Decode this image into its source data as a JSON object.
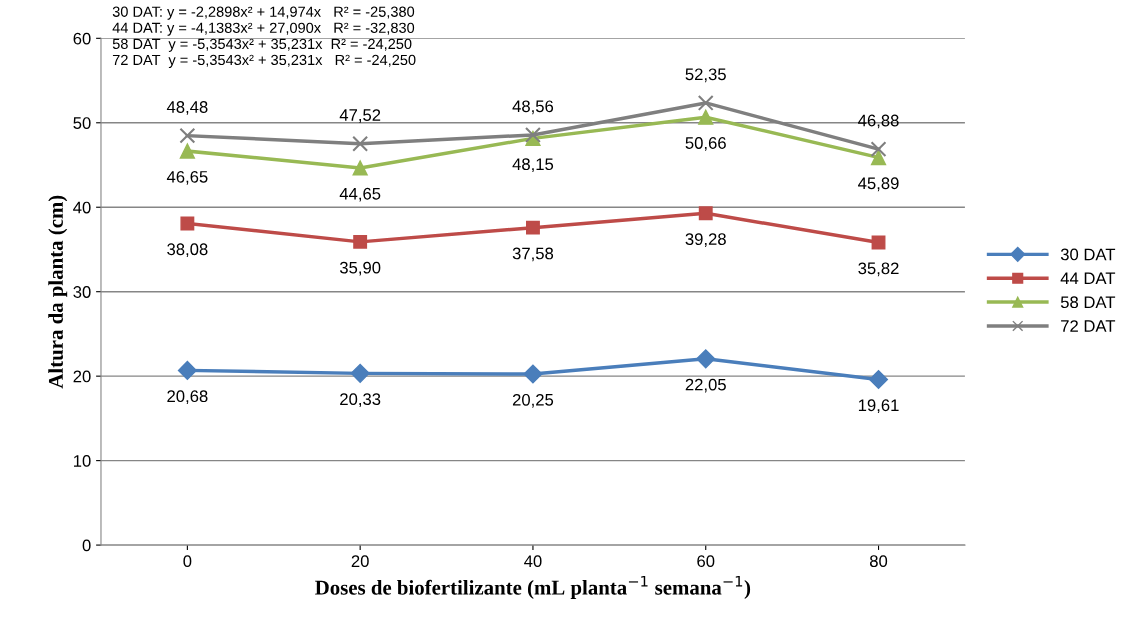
{
  "chart_data": {
    "type": "line",
    "xlabel": "Doses de biofertilizante (mL planta$^{−1}$ semana$^{−1}$)",
    "ylabel": "Altura da planta (cm)",
    "categories": [
      "0",
      "20",
      "40",
      "60",
      "80"
    ],
    "series": [
      {
        "name": "30 DAT",
        "color": "#4a7ebb",
        "marker": "diamond",
        "values": [
          20.68,
          20.33,
          20.25,
          22.05,
          19.61
        ],
        "value_labels": [
          "20,68",
          "20,33",
          "20,25",
          "22,05",
          "19,61"
        ]
      },
      {
        "name": "44 DAT",
        "color": "#be4b48",
        "marker": "square",
        "values": [
          38.08,
          35.9,
          37.58,
          39.28,
          35.82
        ],
        "value_labels": [
          "38,08",
          "35,90",
          "37,58",
          "39,28",
          "35,82"
        ]
      },
      {
        "name": "58 DAT",
        "color": "#98b954",
        "marker": "triangle",
        "values": [
          46.65,
          44.65,
          48.15,
          50.66,
          45.89
        ],
        "value_labels": [
          "46,65",
          "44,65",
          "48,15",
          "50,66",
          "45,89"
        ]
      },
      {
        "name": "72 DAT",
        "color": "#7f7f7f",
        "marker": "cross",
        "values": [
          48.48,
          47.52,
          48.56,
          52.35,
          46.88
        ],
        "value_labels": [
          "48,48",
          "47,52",
          "48,56",
          "52,35",
          "46,88"
        ]
      }
    ],
    "ylim": [
      0,
      60
    ],
    "yticks": [
      0,
      10,
      20,
      30,
      40,
      50,
      60
    ],
    "grid": "y",
    "legend": "right",
    "annotations": [
      "30 DAT: y = -2,2898x² + 14,974x   R² = -25,380",
      "44 DAT: y = -4,1383x² + 27,090x   R² = -32,830",
      "58 DAT  y = -5,3543x² + 35,231x  R² = -24,250",
      "72 DAT  y = -5,3543x² + 35,231x   R² = -24,250"
    ]
  }
}
